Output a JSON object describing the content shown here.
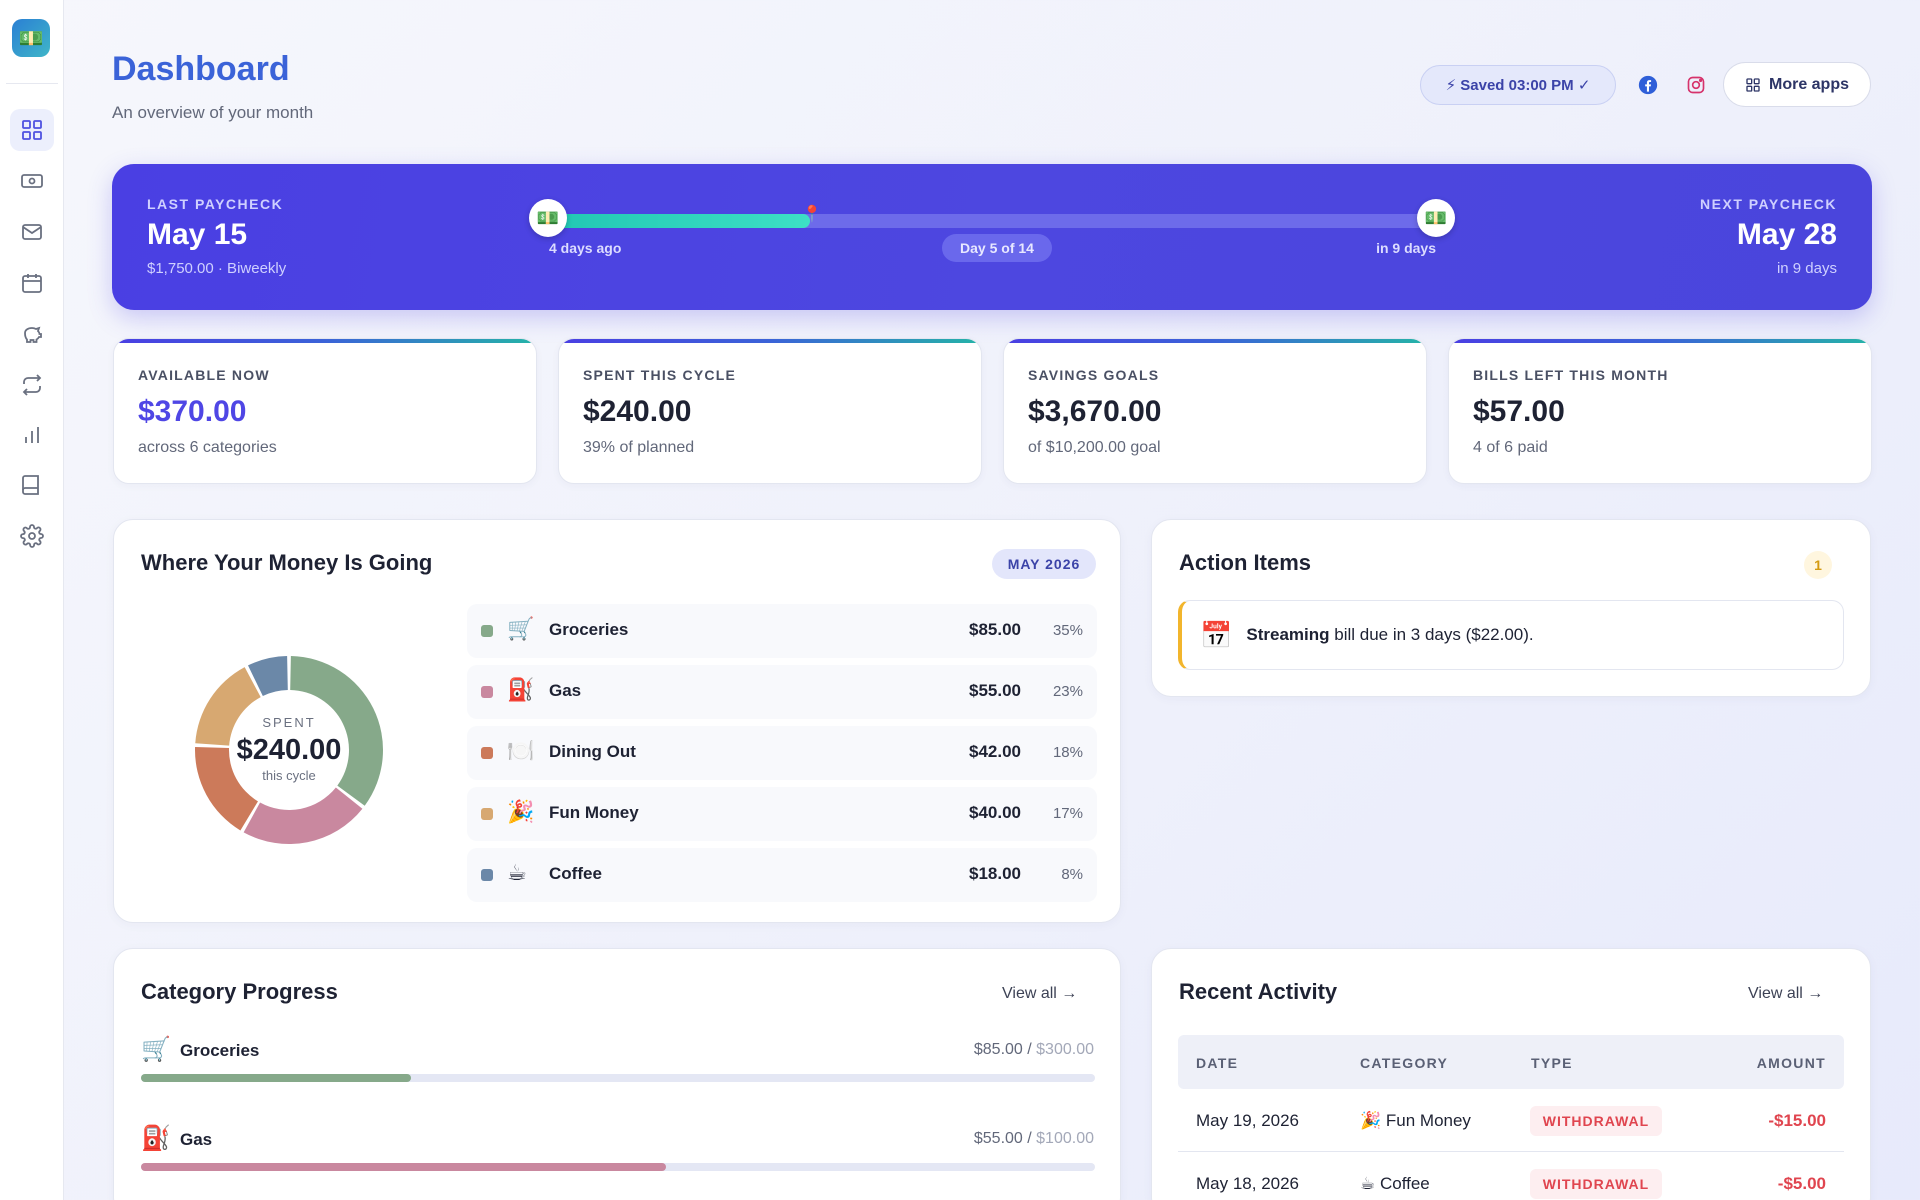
{
  "header": {
    "title": "Dashboard",
    "subtitle": "An overview of your month",
    "saved_status": "⚡ Saved 03:00 PM ✓",
    "more_apps_label": "More apps"
  },
  "sidebar": {
    "logo_icon": "💵",
    "items": [
      {
        "icon": "grid-icon",
        "active": true
      },
      {
        "icon": "money-icon"
      },
      {
        "icon": "mail-icon"
      },
      {
        "icon": "calendar-icon"
      },
      {
        "icon": "piggy-bank-icon"
      },
      {
        "icon": "repeat-icon"
      },
      {
        "icon": "bar-chart-icon"
      },
      {
        "icon": "book-icon"
      },
      {
        "icon": "gear-icon"
      }
    ]
  },
  "paycheck": {
    "last_label": "LAST PAYCHECK",
    "last_date": "May 15",
    "last_sub": "$1,750.00 · Biweekly",
    "next_label": "NEXT PAYCHECK",
    "next_date": "May 28",
    "next_sub": "in 9 days",
    "left_caption": "4 days ago",
    "right_caption": "in 9 days",
    "day_indicator": "Day 5 of 14",
    "progress_fraction": 0.29,
    "end_icon": "💵"
  },
  "stats": [
    {
      "label": "AVAILABLE NOW",
      "value": "$370.00",
      "sub": "across 6 categories"
    },
    {
      "label": "SPENT THIS CYCLE",
      "value": "$240.00",
      "sub": "39% of planned"
    },
    {
      "label": "SAVINGS GOALS",
      "value": "$3,670.00",
      "sub": "of $10,200.00 goal"
    },
    {
      "label": "BILLS LEFT THIS MONTH",
      "value": "$57.00",
      "sub": "4 of 6 paid"
    }
  ],
  "spending": {
    "title": "Where Your Money Is Going",
    "month_badge": "MAY 2026",
    "center_label": "SPENT",
    "center_value": "$240.00",
    "center_sub": "this cycle",
    "categories": [
      {
        "emoji": "🛒",
        "name": "Groceries",
        "amount": "$85.00",
        "pct": "35%",
        "value": 85,
        "color": "#86a98a"
      },
      {
        "emoji": "⛽",
        "name": "Gas",
        "amount": "$55.00",
        "pct": "23%",
        "value": 55,
        "color": "#c9889f"
      },
      {
        "emoji": "🍽️",
        "name": "Dining Out",
        "amount": "$42.00",
        "pct": "18%",
        "value": 42,
        "color": "#cc7a5a"
      },
      {
        "emoji": "🎉",
        "name": "Fun Money",
        "amount": "$40.00",
        "pct": "17%",
        "value": 40,
        "color": "#d7a871"
      },
      {
        "emoji": "☕",
        "name": "Coffee",
        "amount": "$18.00",
        "pct": "8%",
        "value": 18,
        "color": "#6b88a8"
      }
    ]
  },
  "actions": {
    "title": "Action Items",
    "count": "1",
    "items": [
      {
        "icon": "📅",
        "bold": "Streaming",
        "text": " bill due in 3 days ($22.00)."
      }
    ]
  },
  "category_progress": {
    "title": "Category Progress",
    "view_all": "View all →",
    "items": [
      {
        "emoji": "🛒",
        "name": "Groceries",
        "spent": "$85.00",
        "limit": "$300.00",
        "progress": 0.283,
        "color": "#86a98a"
      },
      {
        "emoji": "⛽",
        "name": "Gas",
        "spent": "$55.00",
        "limit": "$100.00",
        "progress": 0.55,
        "color": "#c9889f"
      }
    ]
  },
  "recent_activity": {
    "title": "Recent Activity",
    "view_all": "View all →",
    "columns": [
      "DATE",
      "CATEGORY",
      "TYPE",
      "AMOUNT"
    ],
    "rows": [
      {
        "date": "May 19, 2026",
        "category": "🎉 Fun Money",
        "type": "WITHDRAWAL",
        "amount": "-$15.00"
      },
      {
        "date": "May 18, 2026",
        "category": "☕ Coffee",
        "type": "WITHDRAWAL",
        "amount": "-$5.00"
      }
    ]
  }
}
